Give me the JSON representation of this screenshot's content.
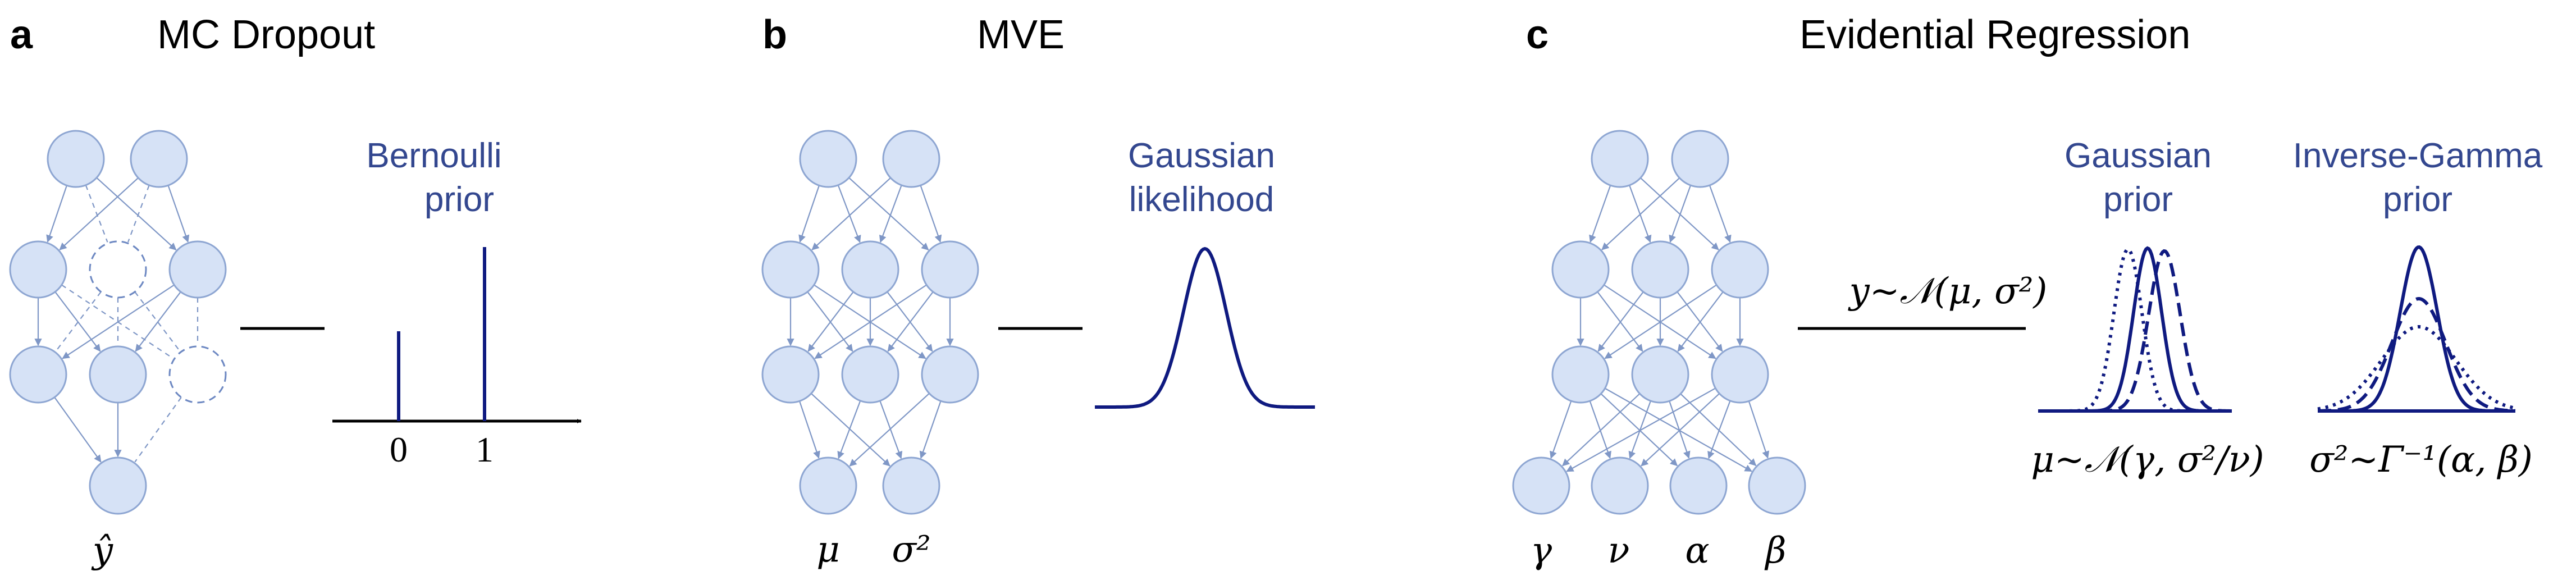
{
  "panels": [
    {
      "letter": "a",
      "title": "MC Dropout",
      "prior_label": [
        "Bernoulli",
        "prior"
      ],
      "axis_ticks": [
        "0",
        "1"
      ],
      "output_labels": [
        "ŷ"
      ]
    },
    {
      "letter": "b",
      "title": "MVE",
      "likelihood_label": [
        "Gaussian",
        "likelihood"
      ],
      "output_labels": [
        "μ",
        "σ²"
      ]
    },
    {
      "letter": "c",
      "title": "Evidential Regression",
      "likelihood_eq": "y~𝒩(μ, σ²)",
      "gaussian_prior": {
        "label": [
          "Gaussian",
          "prior"
        ],
        "eq": "μ~𝒩(γ, σ²/ν)",
        "line_styles": [
          "dotted",
          "solid",
          "dashed"
        ]
      },
      "inverse_gamma_prior": {
        "label": [
          "Inverse-Gamma",
          "prior"
        ],
        "eq": "σ²~Γ⁻¹(α, β)",
        "line_styles": [
          "solid",
          "dashed",
          "dotted"
        ]
      },
      "output_labels": [
        "γ",
        "ν",
        "α",
        "β"
      ]
    }
  ],
  "colors": {
    "node_fill": "#d6e2f6",
    "node_stroke": "#8ea6d2",
    "edge": "#7f97c6",
    "curve": "#0f1a80",
    "prior_text": "#33478f"
  }
}
